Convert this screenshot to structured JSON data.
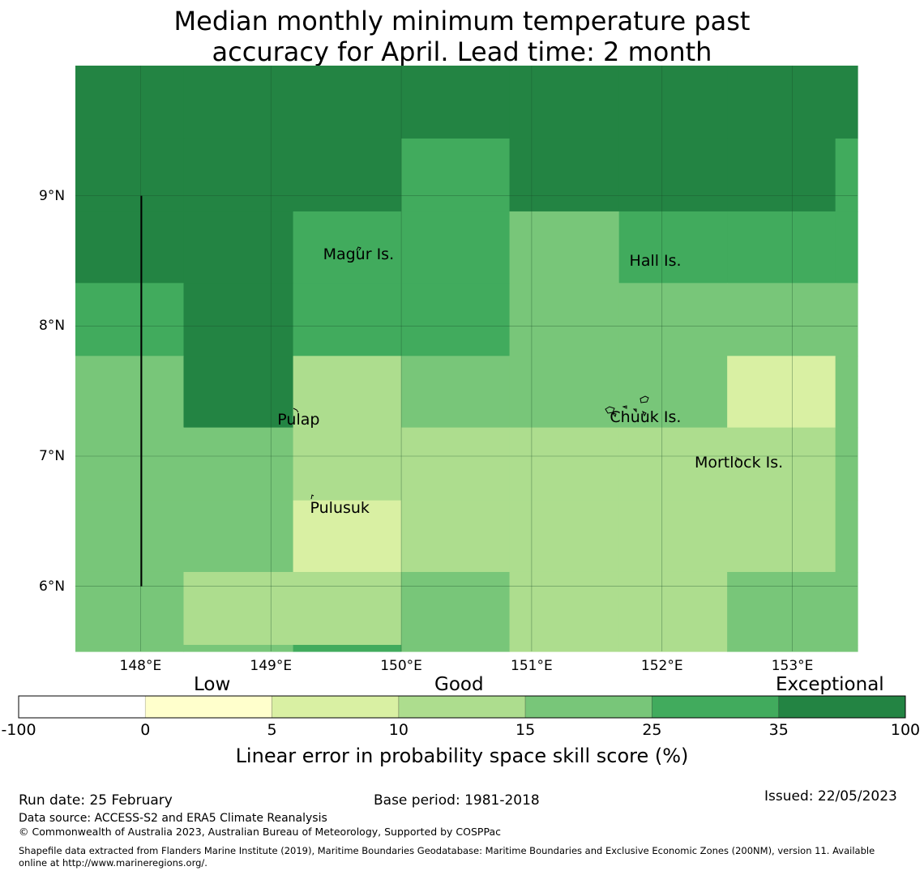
{
  "title": {
    "line1": "Median monthly minimum temperature past",
    "line2": "accuracy for April. Lead time: 2 month"
  },
  "map": {
    "lon_range": [
      147.5,
      153.5
    ],
    "lat_range": [
      5.5,
      10.0
    ],
    "lat_ticks": [
      {
        "value": 9,
        "label": "9°N"
      },
      {
        "value": 8,
        "label": "8°N"
      },
      {
        "value": 7,
        "label": "7°N"
      },
      {
        "value": 6,
        "label": "6°N"
      }
    ],
    "lon_ticks": [
      {
        "value": 148,
        "label": "148°E"
      },
      {
        "value": 149,
        "label": "149°E"
      },
      {
        "value": 150,
        "label": "150°E"
      },
      {
        "value": 151,
        "label": "151°E"
      },
      {
        "value": 152,
        "label": "152°E"
      },
      {
        "value": 153,
        "label": "153°E"
      }
    ],
    "cell_rows_lat_desc": [
      10.0,
      9.44,
      8.88,
      8.33,
      7.77,
      7.22,
      6.66,
      6.11,
      5.55,
      5.5
    ],
    "cell_cols_lon": [
      147.5,
      148.33,
      149.17,
      150.0,
      150.83,
      151.67,
      152.5,
      153.33,
      153.5
    ],
    "grid_levels": [
      [
        6,
        6,
        6,
        6,
        6,
        6,
        6,
        6
      ],
      [
        6,
        6,
        6,
        5,
        6,
        6,
        6,
        5
      ],
      [
        6,
        6,
        5,
        5,
        4,
        5,
        5,
        5
      ],
      [
        5,
        6,
        5,
        5,
        4,
        4,
        4,
        4
      ],
      [
        4,
        6,
        3,
        4,
        4,
        4,
        2,
        4
      ],
      [
        4,
        4,
        3,
        3,
        3,
        3,
        3,
        4
      ],
      [
        4,
        4,
        2,
        3,
        3,
        3,
        3,
        4
      ],
      [
        4,
        3,
        3,
        4,
        3,
        3,
        4,
        4
      ],
      [
        4,
        4,
        5,
        4,
        3,
        3,
        4,
        4
      ]
    ],
    "islands": [
      {
        "name": "Magur Is.",
        "lon": 149.4,
        "lat": 8.55
      },
      {
        "name": "Hall Is.",
        "lon": 151.75,
        "lat": 8.5
      },
      {
        "name": "Pulap",
        "lon": 149.05,
        "lat": 7.28
      },
      {
        "name": "Chuuk Is.",
        "lon": 151.6,
        "lat": 7.3
      },
      {
        "name": "Mortlock Is.",
        "lon": 152.25,
        "lat": 6.95
      },
      {
        "name": "Pulusuk",
        "lon": 149.3,
        "lat": 6.6
      }
    ],
    "boundary_line": {
      "lon": 148.0,
      "lat_from": 6.0,
      "lat_to": 9.0
    }
  },
  "colorbar": {
    "categories": [
      "Low",
      "Good",
      "Exceptional"
    ],
    "tick_labels": [
      "-100",
      "0",
      "5",
      "10",
      "15",
      "25",
      "35",
      "100"
    ],
    "segment_colors": [
      "#ffffff",
      "#ffffcc",
      "#d9f0a3",
      "#addd8e",
      "#78c679",
      "#41ab5d",
      "#238443"
    ],
    "label": "Linear error in probability space skill score (%)"
  },
  "footer": {
    "run_date": "Run date: 25 February",
    "base_period": "Base period: 1981-2018",
    "issued": "Issued: 22/05/2023",
    "data_source": "Data source: ACCESS-S2 and ERA5 Climate Reanalysis",
    "copyright": "© Commonwealth of Australia 2023, Australian Bureau of Meteorology, Supported by COSPPac",
    "shapefile_line1": "Shapefile data extracted from Flanders Marine Institute (2019), Maritime Boundaries Geodatabase: Maritime Boundaries and Exclusive Economic Zones (200NM), version 11. Available",
    "shapefile_line2": "online at http://www.marineregions.org/."
  }
}
